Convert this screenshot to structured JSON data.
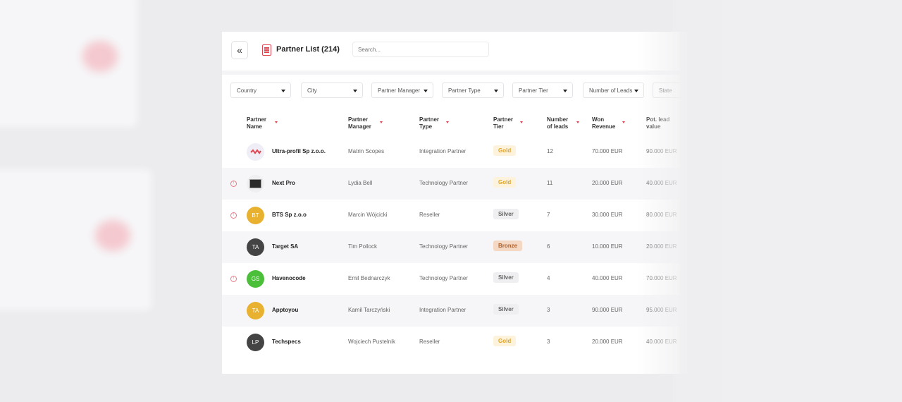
{
  "panel": {
    "title": "Partner List (214)",
    "search_placeholder": "Search..."
  },
  "filters": [
    "Country",
    "City",
    "Partner Manager",
    "Partner Type",
    "Partner Tier",
    "Number of Leads",
    "State"
  ],
  "columns": {
    "name": [
      "Partner",
      "Name"
    ],
    "manager": [
      "Partner",
      "Manager"
    ],
    "type": [
      "Partner",
      "Type"
    ],
    "tier": [
      "Partner",
      "Tier"
    ],
    "leads": [
      "Number",
      "of leads"
    ],
    "revenue": [
      "Won",
      "Revenue"
    ],
    "potlead": [
      "Pot. lead",
      "value"
    ]
  },
  "rows": [
    {
      "name": "Ultra-profil Sp z.o.o.",
      "manager": "Matrin Scopes",
      "type": "Integration Partner",
      "tier": "Gold",
      "leads": "12",
      "revenue": "70.000 EUR",
      "potlead": "90.000 EUR",
      "avatar": "",
      "avatar_kind": "logo-ultra",
      "warn": false
    },
    {
      "name": "Next Pro",
      "manager": "Lydia Bell",
      "type": "Technology Partner",
      "tier": "Gold",
      "leads": "11",
      "revenue": "20.000 EUR",
      "potlead": "40.000 EUR",
      "avatar": "",
      "avatar_kind": "logo-next",
      "warn": true
    },
    {
      "name": "BTS Sp z.o.o",
      "manager": "Marcin Wójcicki",
      "type": "Reseller",
      "tier": "Silver",
      "leads": "7",
      "revenue": "30.000 EUR",
      "potlead": "80.000 EUR",
      "avatar": "BT",
      "avatar_kind": "initials",
      "avatar_color": "#e8b12f",
      "warn": true
    },
    {
      "name": "Target SA",
      "manager": "Tim Pollock",
      "type": "Technology Partner",
      "tier": "Bronze",
      "leads": "6",
      "revenue": "10.000 EUR",
      "potlead": "20.000 EUR",
      "avatar": "TA",
      "avatar_kind": "initials",
      "avatar_color": "#444444",
      "warn": false
    },
    {
      "name": "Havenocode",
      "manager": "Emil Bednarczyk",
      "type": "Technology Partner",
      "tier": "Silver",
      "leads": "4",
      "revenue": "40.000 EUR",
      "potlead": "70.000 EUR",
      "avatar": "GS",
      "avatar_kind": "initials",
      "avatar_color": "#4cbf3a",
      "warn": true
    },
    {
      "name": "Apptoyou",
      "manager": "Kamil Tarczyński",
      "type": "Integration Partner",
      "tier": "Silver",
      "leads": "3",
      "revenue": "90.000 EUR",
      "potlead": "95.000 EUR",
      "avatar": "TA",
      "avatar_kind": "initials",
      "avatar_color": "#e8b12f",
      "warn": false
    },
    {
      "name": "Techspecs",
      "manager": "Wojciech Pustelnik",
      "type": "Reseller",
      "tier": "Gold",
      "leads": "3",
      "revenue": "20.000 EUR",
      "potlead": "40.000 EUR",
      "avatar": "LP",
      "avatar_kind": "initials",
      "avatar_color": "#444444",
      "warn": false
    }
  ],
  "tier_colors": {
    "Gold": {
      "bg": "#fdf3dc",
      "fg": "#e0a528"
    },
    "Silver": {
      "bg": "#efeff1",
      "fg": "#666666"
    },
    "Bronze": {
      "bg": "#f5d8c3",
      "fg": "#b0612b"
    }
  },
  "accent_color": "#e0434f"
}
